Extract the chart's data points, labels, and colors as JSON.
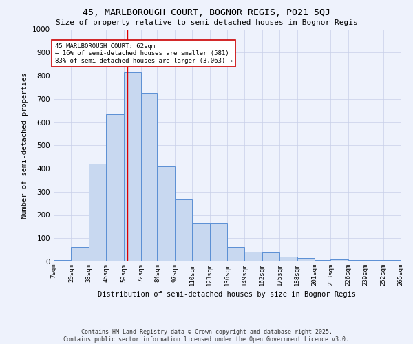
{
  "title": "45, MARLBOROUGH COURT, BOGNOR REGIS, PO21 5QJ",
  "subtitle": "Size of property relative to semi-detached houses in Bognor Regis",
  "xlabel": "Distribution of semi-detached houses by size in Bognor Regis",
  "ylabel": "Number of semi-detached properties",
  "bins": [
    7,
    20,
    33,
    46,
    59,
    72,
    84,
    97,
    110,
    123,
    136,
    149,
    162,
    175,
    188,
    201,
    213,
    226,
    239,
    252,
    265
  ],
  "counts": [
    5,
    63,
    422,
    635,
    815,
    725,
    408,
    270,
    165,
    165,
    63,
    42,
    38,
    20,
    14,
    5,
    10,
    5,
    5,
    5
  ],
  "bar_facecolor": "#c8d8f0",
  "bar_edgecolor": "#5b8fd4",
  "property_size": 62,
  "vline_color": "#dd0000",
  "annotation_text": "45 MARLBOROUGH COURT: 62sqm\n← 16% of semi-detached houses are smaller (581)\n83% of semi-detached houses are larger (3,063) →",
  "annotation_box_edgecolor": "#cc0000",
  "annotation_box_facecolor": "#ffffff",
  "tick_labels": [
    "7sqm",
    "20sqm",
    "33sqm",
    "46sqm",
    "59sqm",
    "72sqm",
    "84sqm",
    "97sqm",
    "110sqm",
    "123sqm",
    "136sqm",
    "149sqm",
    "162sqm",
    "175sqm",
    "188sqm",
    "201sqm",
    "213sqm",
    "226sqm",
    "239sqm",
    "252sqm",
    "265sqm"
  ],
  "bg_color": "#eef2fc",
  "grid_color": "#c8cfe8",
  "footnote": "Contains HM Land Registry data © Crown copyright and database right 2025.\nContains public sector information licensed under the Open Government Licence v3.0.",
  "ylim": [
    0,
    1000
  ],
  "yticks": [
    0,
    100,
    200,
    300,
    400,
    500,
    600,
    700,
    800,
    900,
    1000
  ]
}
